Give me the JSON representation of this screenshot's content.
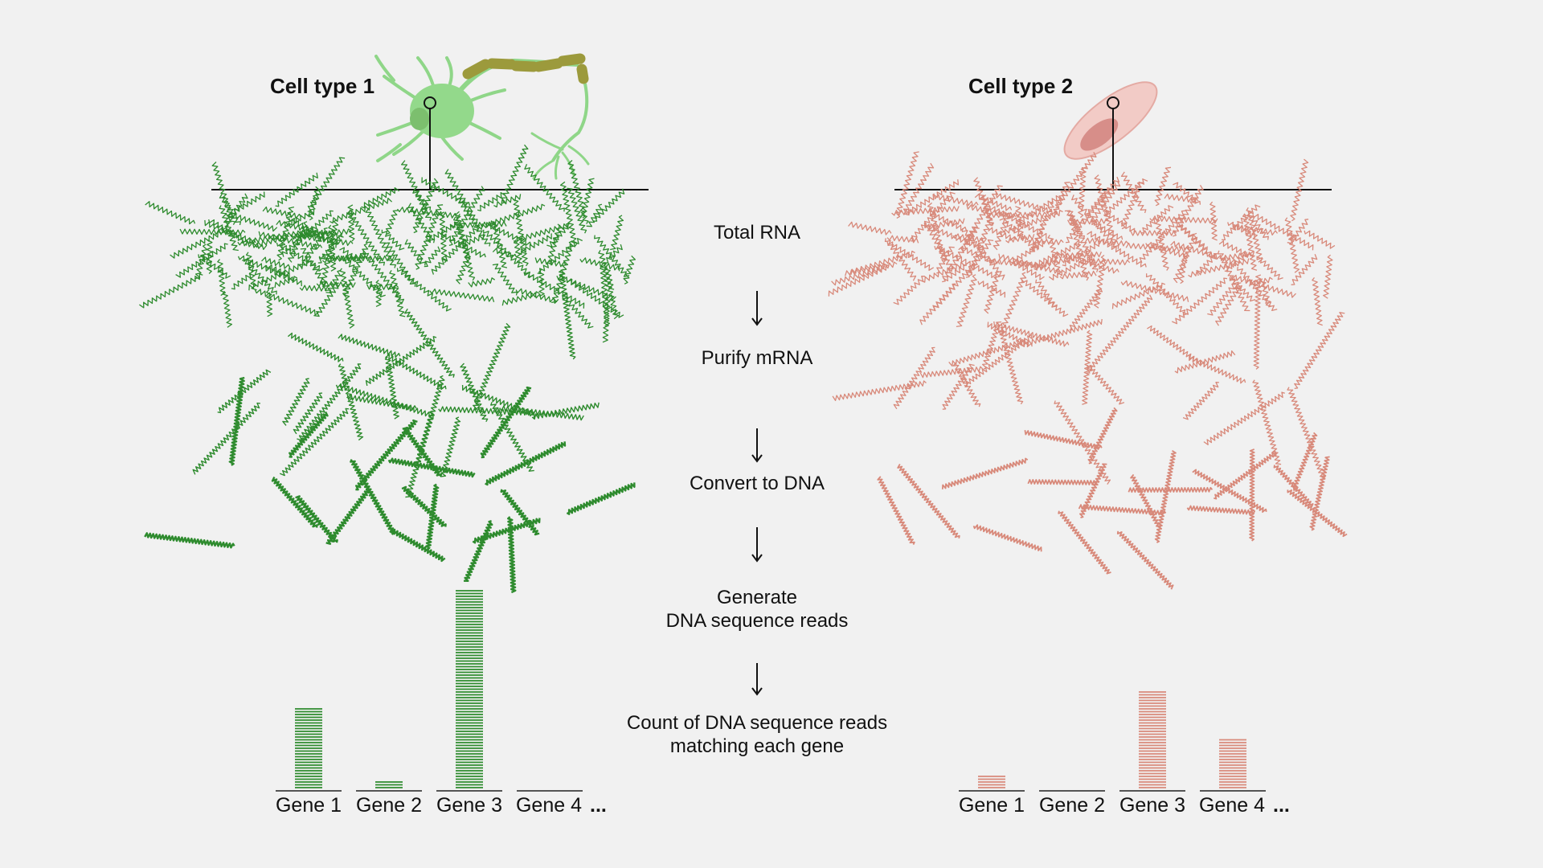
{
  "colors": {
    "cell1": "#2e8b2e",
    "cell2": "#d8897a",
    "neuron": "#92d98b",
    "axon": "#a9a44b",
    "cell2_body": "#f0c4c0"
  },
  "cell1": {
    "title": "Cell type 1",
    "icon": "neuron-cell"
  },
  "cell2": {
    "title": "Cell type 2",
    "icon": "fibroblast-cell"
  },
  "steps": [
    "Total RNA",
    "Purify mRNA",
    "Convert to DNA",
    "Generate\nDNA sequence reads",
    "Count of DNA sequence reads\nmatching each gene"
  ],
  "ellipsis": "...",
  "chart_data": [
    {
      "type": "bar",
      "title": "Cell type 1",
      "categories": [
        "Gene 1",
        "Gene 2",
        "Gene 3",
        "Gene 4"
      ],
      "values": [
        29,
        3,
        71,
        0
      ],
      "color": "#2e8b2e"
    },
    {
      "type": "bar",
      "title": "Cell type 2",
      "categories": [
        "Gene 1",
        "Gene 2",
        "Gene 3",
        "Gene 4"
      ],
      "values": [
        5,
        0,
        35,
        18
      ],
      "color": "#d8897a"
    }
  ]
}
